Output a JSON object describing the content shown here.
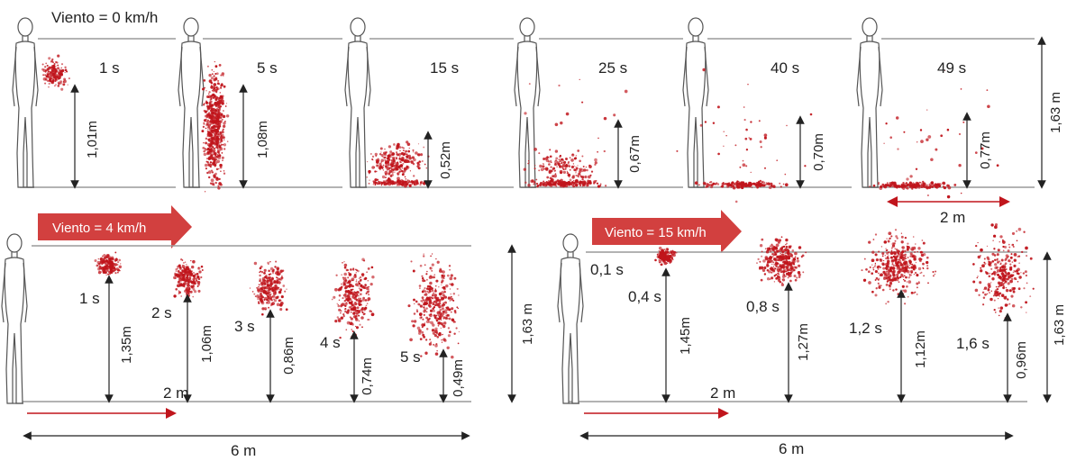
{
  "colors": {
    "droplet": "#c0151c",
    "arrow": "#d2403f",
    "line": "#9a9a9a",
    "dim": "#222222"
  },
  "top_row": {
    "wind_label": "Viento = 0 km/h",
    "frames": [
      {
        "time": "1 s",
        "height": "1,01m"
      },
      {
        "time": "5 s",
        "height": "1,08m"
      },
      {
        "time": "15 s",
        "height": "0,52m"
      },
      {
        "time": "25 s",
        "height": "0,67m"
      },
      {
        "time": "40 s",
        "height": "0,70m"
      },
      {
        "time": "49 s",
        "height": "0,77m"
      }
    ],
    "total_height": "1,63 m",
    "distance": "2 m"
  },
  "bottom_left": {
    "wind_label": "Viento = 4 km/h",
    "frames": [
      {
        "time": "1 s",
        "height": "1,35m"
      },
      {
        "time": "2 s",
        "height": "1,06m"
      },
      {
        "time": "3 s",
        "height": "0,86m"
      },
      {
        "time": "4 s",
        "height": "0,74m"
      },
      {
        "time": "5 s",
        "height": "0,49m"
      }
    ],
    "total_height": "1,63 m",
    "distance_short": "2 m",
    "distance_long": "6 m"
  },
  "bottom_right": {
    "wind_label": "Viento = 15 km/h",
    "frames": [
      {
        "time": "0,1 s",
        "height": ""
      },
      {
        "time": "0,4 s",
        "height": "1,45m"
      },
      {
        "time": "0,8 s",
        "height": "1,27m"
      },
      {
        "time": "1,2 s",
        "height": "1,12m"
      },
      {
        "time": "1,6 s",
        "height": "0,96m"
      }
    ],
    "total_height": "1,63 m",
    "distance_short": "2 m",
    "distance_long": "6 m"
  }
}
